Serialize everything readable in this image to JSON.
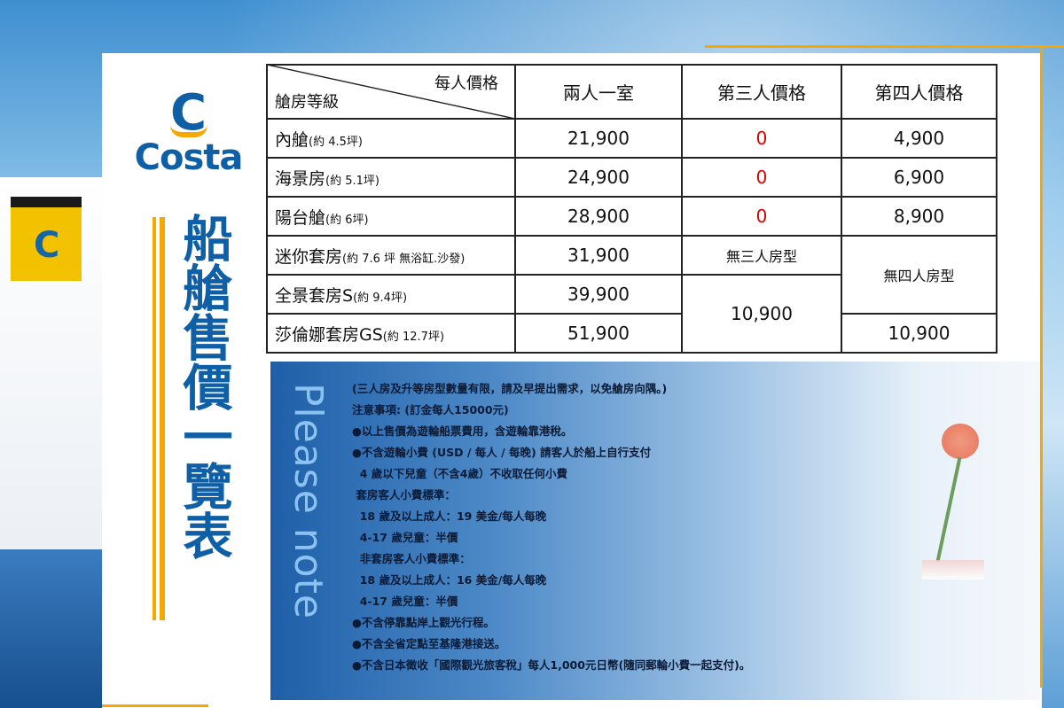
{
  "brand": {
    "logo_letter": "C",
    "logo_text": "Costa",
    "funnel_letter": "C"
  },
  "title": "船艙售價一覽表",
  "table": {
    "header": {
      "corner_top": "每人價格",
      "corner_bottom": "艙房等級",
      "col1": "兩人一室",
      "col2": "第三人價格",
      "col3": "第四人價格"
    },
    "rows": [
      {
        "name": "內艙",
        "note": "(約 4.5坪)",
        "double": "21,900",
        "third": "0",
        "fourth": "4,900"
      },
      {
        "name": "海景房",
        "note": "(約 5.1坪)",
        "double": "24,900",
        "third": "0",
        "fourth": "6,900"
      },
      {
        "name": "陽台艙",
        "note": "(約 6坪)",
        "double": "28,900",
        "third": "0",
        "fourth": "8,900"
      },
      {
        "name": "迷你套房",
        "note": "(約 7.6 坪 無浴缸.沙發)",
        "double": "31,900",
        "third": "無三人房型",
        "fourth": "無四人房型"
      },
      {
        "name": "全景套房S",
        "note": "(約 9.4坪)",
        "double": "39,900",
        "third": "10,900"
      },
      {
        "name": "莎倫娜套房GS",
        "note": "(約 12.7坪)",
        "double": "51,900",
        "fourth": "10,900"
      }
    ],
    "zero_color": "#e00000"
  },
  "note": {
    "heading": "Please note",
    "lines": [
      "(三人房及升等房型數量有限，請及早提出需求，以免艙房向隅。)",
      "注意事項: (訂金每人15000元)",
      "●以上售價為遊輪船票費用，含遊輪靠港稅。",
      "●不含遊輪小費 (USD / 每人 / 每晚) 請客人於船上自行支付",
      "  4 歲以下兒童（不含4歲）不收取任何小費",
      " 套房客人小費標準：",
      "  18 歲及以上成人：19 美金/每人每晚",
      "  4-17 歲兒童：半價",
      "  非套房客人小費標準：",
      "  18 歲及以上成人：16 美金/每人每晚",
      "  4-17 歲兒童：半價",
      "●不含停靠點岸上觀光行程。",
      "●不含全省定點至基隆港接送。",
      "●不含日本徵收「國際觀光旅客稅」每人1,000元日幣(隨同郵輪小費一起支付)。"
    ]
  }
}
